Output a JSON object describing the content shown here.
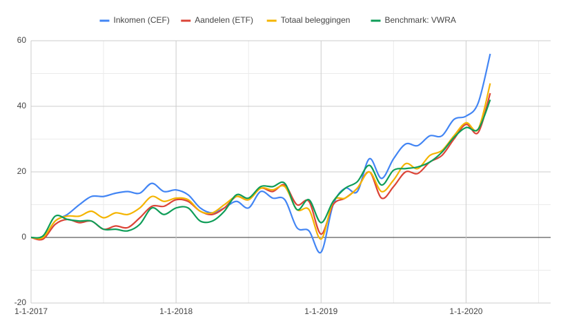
{
  "chart_data": {
    "type": "line",
    "x": [
      0,
      1,
      2,
      3,
      4,
      5,
      6,
      7,
      8,
      9,
      10,
      11,
      12,
      13,
      14,
      15,
      16,
      17,
      18,
      19,
      20,
      21,
      22,
      23,
      24,
      25,
      26,
      27,
      28,
      29,
      30,
      31,
      32,
      33,
      34,
      35,
      36,
      37,
      38
    ],
    "series": [
      {
        "name": "Inkomen (CEF)",
        "color": "#4285f4",
        "values": [
          0,
          0,
          5,
          7,
          10,
          12.5,
          12.5,
          13.5,
          14,
          13.5,
          16.5,
          14,
          14.5,
          13,
          9,
          7.5,
          9,
          11,
          9,
          14,
          12,
          11.5,
          3,
          2,
          -4.5,
          10,
          15,
          14,
          24,
          18,
          24,
          28.5,
          28,
          31,
          31,
          36,
          37,
          41,
          56
        ]
      },
      {
        "name": "Aandelen (ETF)",
        "color": "#db4437",
        "values": [
          0,
          -0.5,
          4,
          5.5,
          4.5,
          5,
          2.5,
          3.5,
          3,
          6,
          9.5,
          9.5,
          11.5,
          11,
          8,
          7,
          9,
          12.5,
          11.5,
          15,
          14,
          16,
          10,
          11,
          1,
          10,
          12,
          15,
          20,
          12,
          15.5,
          20,
          19.5,
          23,
          25,
          30,
          34.5,
          32,
          44
        ]
      },
      {
        "name": "Totaal beleggingen",
        "color": "#f4b400",
        "values": [
          0,
          0,
          5,
          6.5,
          6.5,
          8,
          6,
          7.5,
          7,
          9,
          12.5,
          11,
          12,
          11.5,
          8,
          7.5,
          10,
          12.5,
          11.5,
          15,
          14.5,
          15.5,
          8.5,
          8.5,
          -0.5,
          11,
          12,
          15,
          20,
          14,
          17.5,
          22.5,
          21,
          25,
          26.5,
          31,
          35,
          33,
          47
        ]
      },
      {
        "name": "Benchmark: VWRA",
        "color": "#0f9d58",
        "values": [
          0,
          0.5,
          6.5,
          5.5,
          5,
          5,
          2.5,
          2.5,
          2,
          4,
          9,
          7,
          9,
          9,
          5,
          5,
          8,
          13,
          12,
          15.5,
          15.5,
          16.5,
          8.5,
          11.5,
          4.5,
          11,
          15,
          17,
          22,
          16,
          20.5,
          21,
          21.5,
          23,
          26,
          30.5,
          33.5,
          33,
          42
        ]
      }
    ],
    "xlim": [
      0,
      43
    ],
    "xticks": [
      {
        "value": 0,
        "label": "1-1-2017"
      },
      {
        "value": 12,
        "label": "1-1-2018"
      },
      {
        "value": 24,
        "label": "1-1-2019"
      },
      {
        "value": 36,
        "label": "1-1-2020"
      }
    ],
    "xminor": [
      6,
      18,
      30,
      42
    ],
    "ylim": [
      -20,
      60
    ],
    "yticks": [
      -20,
      0,
      20,
      40,
      60
    ],
    "yminor": [
      -10,
      10,
      30,
      50
    ],
    "grid": true,
    "legend": "top"
  }
}
